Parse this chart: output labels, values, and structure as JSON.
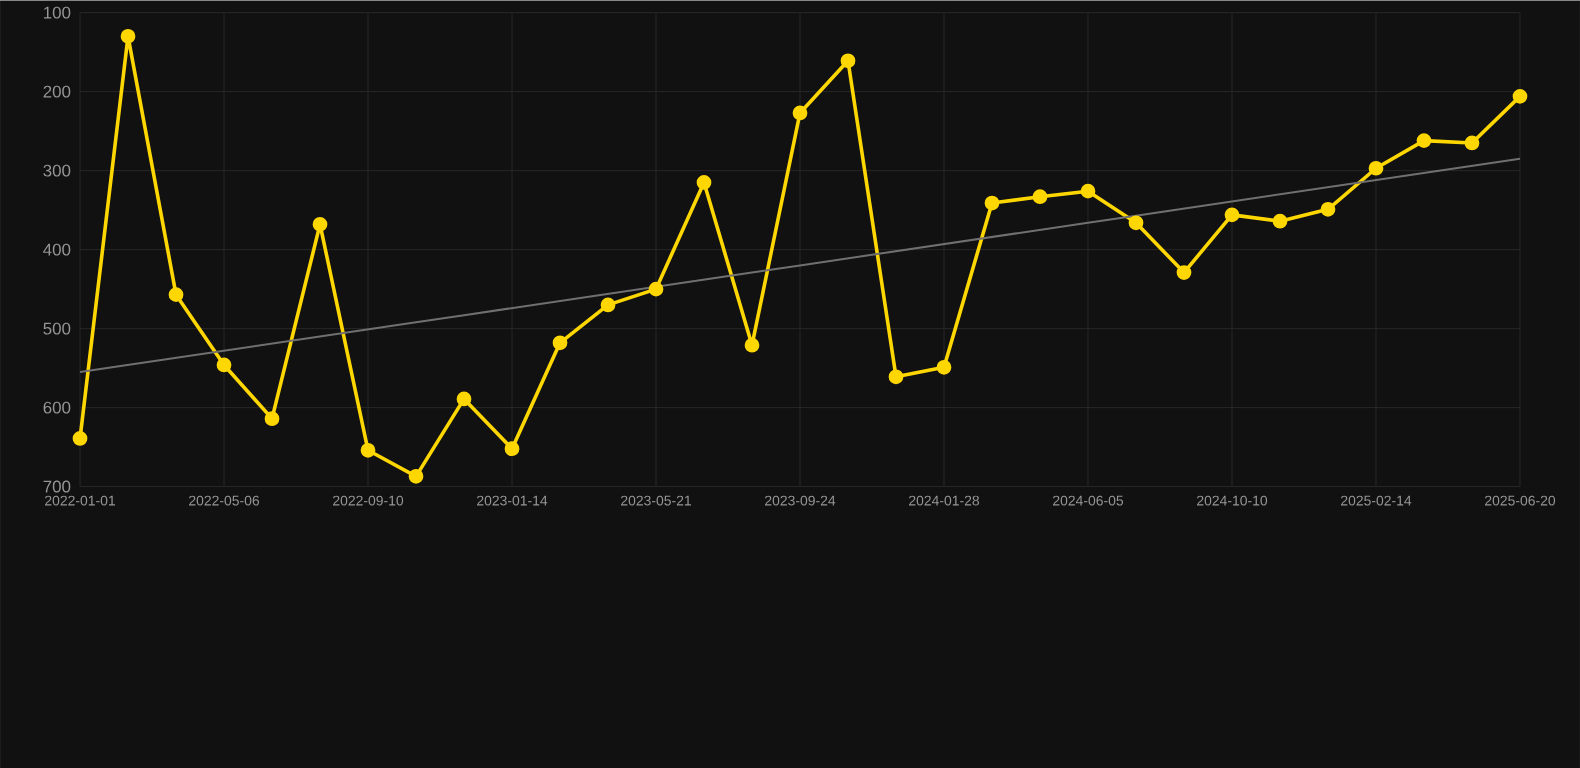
{
  "chart_data": {
    "type": "line",
    "categories": [
      "2022-01-01",
      null,
      null,
      "2022-05-06",
      null,
      null,
      "2022-09-10",
      null,
      null,
      "2023-01-14",
      null,
      null,
      "2023-05-21",
      null,
      null,
      "2023-09-24",
      null,
      null,
      "2024-01-28",
      null,
      null,
      "2024-06-05",
      null,
      null,
      "2024-10-10",
      null,
      null,
      "2025-02-14",
      null,
      null,
      "2025-06-20"
    ],
    "series": [
      {
        "color": "#ffd700",
        "marker": "circle",
        "values": [
          639,
          130,
          457,
          546,
          614,
          368,
          654,
          687,
          589,
          652,
          518,
          470,
          450,
          315,
          521,
          227,
          161,
          561,
          549,
          341,
          333,
          326,
          366,
          429,
          356,
          364,
          349,
          297,
          262,
          265,
          206
        ]
      },
      {
        "color": "#707070",
        "marker": "none",
        "values": [
          555,
          546,
          537,
          528,
          519,
          510,
          501,
          492,
          483,
          474,
          465,
          456,
          447,
          438,
          429,
          420,
          411,
          402,
          393,
          384,
          375,
          366,
          357,
          348,
          339,
          330,
          321,
          312,
          303,
          294,
          285
        ]
      }
    ],
    "ylim": [
      700,
      100
    ],
    "yticks": [
      100,
      200,
      300,
      400,
      500,
      600,
      700
    ],
    "grid": true
  }
}
